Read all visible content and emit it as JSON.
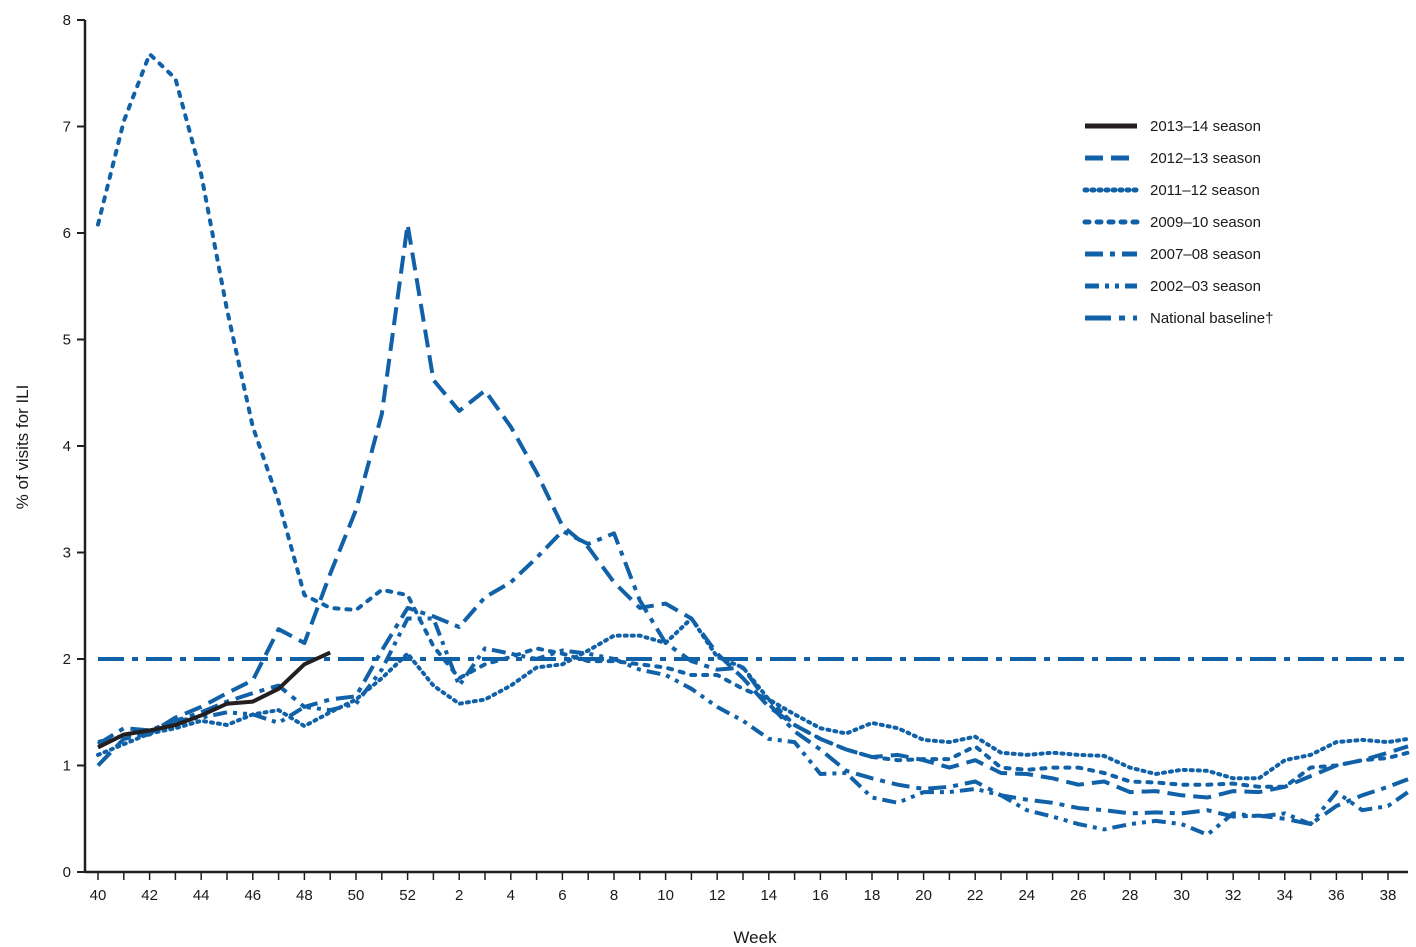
{
  "chart_data": {
    "type": "line",
    "title": "",
    "xlabel": "Week",
    "ylabel": "% of visits for ILI",
    "ylim": [
      0,
      8
    ],
    "yticks": [
      0,
      1,
      2,
      3,
      4,
      5,
      6,
      7,
      8
    ],
    "x_categories": [
      "40",
      "41",
      "42",
      "43",
      "44",
      "45",
      "46",
      "47",
      "48",
      "49",
      "50",
      "51",
      "52",
      "1",
      "2",
      "3",
      "4",
      "5",
      "6",
      "7",
      "8",
      "9",
      "10",
      "11",
      "12",
      "13",
      "14",
      "15",
      "16",
      "17",
      "18",
      "19",
      "20",
      "21",
      "22",
      "23",
      "24",
      "25",
      "26",
      "27",
      "28",
      "29",
      "30",
      "31",
      "32",
      "33",
      "34",
      "35",
      "36",
      "37",
      "38",
      "39"
    ],
    "x_tick_labels": [
      "40",
      "42",
      "44",
      "46",
      "48",
      "50",
      "52",
      "2",
      "4",
      "6",
      "8",
      "10",
      "12",
      "14",
      "16",
      "18",
      "20",
      "22",
      "24",
      "26",
      "28",
      "30",
      "32",
      "34",
      "36",
      "38"
    ],
    "grid": false,
    "legend_position": "top-right",
    "series": [
      {
        "name": "2013–14 season",
        "style": "solid",
        "color": "#231f20",
        "values": [
          1.17,
          1.29,
          1.33,
          1.38,
          1.47,
          1.58,
          1.6,
          1.72,
          1.95,
          2.06
        ]
      },
      {
        "name": "2012–13 season",
        "style": "dashed",
        "color": "#1061a8",
        "values": [
          1.0,
          1.25,
          1.3,
          1.45,
          1.55,
          1.68,
          1.8,
          2.28,
          2.15,
          2.8,
          3.4,
          4.3,
          6.08,
          4.62,
          4.33,
          4.52,
          4.18,
          3.75,
          3.25,
          3.05,
          2.72,
          2.48,
          2.52,
          2.38,
          2.05,
          1.82,
          1.55,
          1.38,
          1.25,
          1.15,
          1.08,
          1.1,
          1.05,
          0.98,
          1.05,
          0.93,
          0.92,
          0.88,
          0.82,
          0.85,
          0.75,
          0.76,
          0.72,
          0.7,
          0.76,
          0.75,
          0.8,
          0.9,
          1.0,
          1.05,
          1.12,
          1.18
        ]
      },
      {
        "name": "2011–12 season",
        "style": "dotted",
        "color": "#1061a8",
        "values": [
          1.1,
          1.2,
          1.3,
          1.35,
          1.42,
          1.38,
          1.48,
          1.52,
          1.37,
          1.5,
          1.62,
          1.82,
          2.05,
          1.75,
          1.58,
          1.62,
          1.75,
          1.92,
          1.95,
          2.08,
          2.22,
          2.22,
          2.15,
          2.38,
          2.02,
          1.92,
          1.62,
          1.48,
          1.35,
          1.3,
          1.4,
          1.35,
          1.24,
          1.22,
          1.27,
          1.12,
          1.1,
          1.12,
          1.1,
          1.09,
          0.98,
          0.92,
          0.96,
          0.95,
          0.88,
          0.88,
          1.05,
          1.1,
          1.22,
          1.24,
          1.22,
          1.25
        ]
      },
      {
        "name": "2009–10 season",
        "style": "sparse-dotted",
        "color": "#1061a8",
        "values": [
          6.08,
          7.05,
          7.68,
          7.45,
          6.55,
          5.28,
          4.18,
          3.48,
          2.6,
          2.48,
          2.46,
          2.65,
          2.6,
          2.12,
          1.82,
          1.95,
          2.02,
          2.1,
          2.05,
          1.98,
          1.98,
          1.95,
          1.92,
          1.85,
          1.85,
          1.72,
          1.62,
          1.38,
          1.25,
          1.15,
          1.08,
          1.05,
          1.06,
          1.06,
          1.18,
          0.98,
          0.96,
          0.98,
          0.98,
          0.93,
          0.85,
          0.84,
          0.82,
          0.82,
          0.83,
          0.8,
          0.8,
          0.98,
          1.0,
          1.05,
          1.07,
          1.12
        ]
      },
      {
        "name": "2007–08 season",
        "style": "dash-dot",
        "color": "#1061a8",
        "values": [
          1.2,
          1.35,
          1.33,
          1.42,
          1.5,
          1.6,
          1.68,
          1.75,
          1.55,
          1.62,
          1.65,
          2.08,
          2.48,
          2.4,
          2.3,
          2.58,
          2.72,
          2.95,
          3.2,
          3.08,
          3.18,
          2.55,
          2.15,
          1.98,
          1.9,
          1.92,
          1.58,
          1.32,
          1.15,
          0.95,
          0.88,
          0.82,
          0.78,
          0.8,
          0.85,
          0.72,
          0.68,
          0.65,
          0.6,
          0.58,
          0.55,
          0.56,
          0.55,
          0.58,
          0.52,
          0.53,
          0.5,
          0.45,
          0.62,
          0.72,
          0.8,
          0.87
        ]
      },
      {
        "name": "2002–03 season",
        "style": "dash-dot-dot",
        "color": "#1061a8",
        "values": [
          1.22,
          1.28,
          1.29,
          1.42,
          1.45,
          1.5,
          1.48,
          1.4,
          1.55,
          1.52,
          1.58,
          1.9,
          2.38,
          2.38,
          1.75,
          2.1,
          2.05,
          2.0,
          2.08,
          2.05,
          2.0,
          1.9,
          1.85,
          1.72,
          1.55,
          1.42,
          1.25,
          1.22,
          0.92,
          0.93,
          0.7,
          0.65,
          0.75,
          0.75,
          0.78,
          0.72,
          0.58,
          0.52,
          0.45,
          0.4,
          0.45,
          0.48,
          0.45,
          0.35,
          0.55,
          0.52,
          0.55,
          0.45,
          0.75,
          0.58,
          0.62,
          0.75
        ]
      },
      {
        "name": "National baseline†",
        "style": "dash-dot-long",
        "color": "#1061a8",
        "values": [
          2.0,
          2.0,
          2.0,
          2.0,
          2.0,
          2.0,
          2.0,
          2.0,
          2.0,
          2.0,
          2.0,
          2.0,
          2.0,
          2.0,
          2.0,
          2.0,
          2.0,
          2.0,
          2.0,
          2.0,
          2.0,
          2.0,
          2.0,
          2.0,
          2.0,
          2.0,
          2.0,
          2.0,
          2.0,
          2.0,
          2.0,
          2.0,
          2.0,
          2.0,
          2.0,
          2.0,
          2.0,
          2.0,
          2.0,
          2.0,
          2.0,
          2.0,
          2.0,
          2.0,
          2.0,
          2.0,
          2.0,
          2.0,
          2.0,
          2.0,
          2.0,
          2.0
        ]
      }
    ]
  }
}
